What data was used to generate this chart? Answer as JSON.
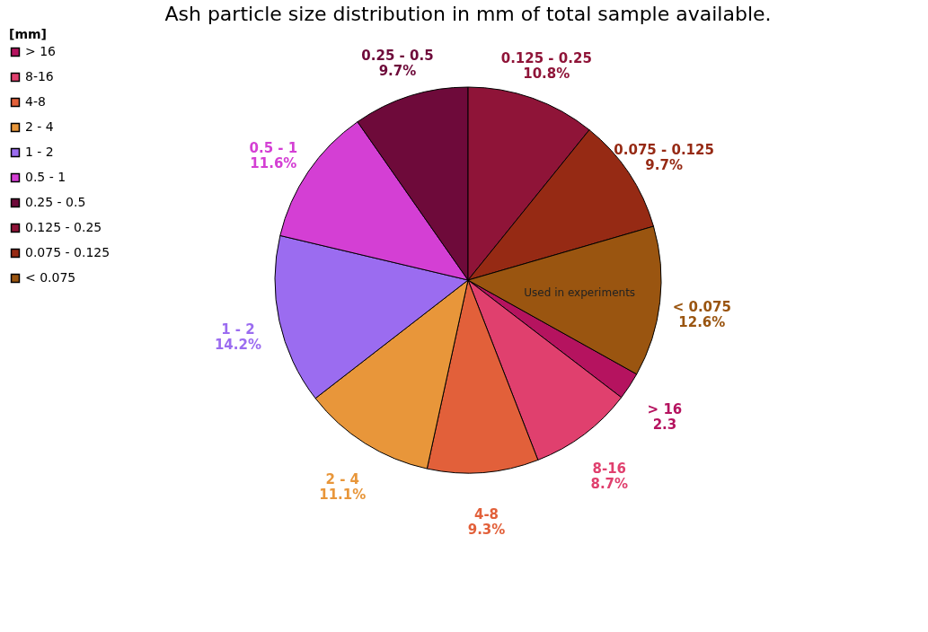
{
  "chart_data": {
    "type": "pie",
    "title": "Ash particle size distribution in mm of total sample available.",
    "legend_title": "[mm]",
    "legend": "left",
    "categories": [
      "> 16",
      "8-16",
      "4-8",
      "2 - 4",
      "1 - 2",
      "0.5 - 1",
      "0.25 - 0.5",
      "0.125 - 0.25",
      "0.075 - 0.125",
      "<  0.075"
    ],
    "values": [
      2.3,
      8.7,
      9.3,
      11.1,
      14.2,
      11.6,
      9.7,
      10.8,
      9.7,
      12.6
    ],
    "value_labels": [
      "2.3",
      "8.7%",
      "9.3%",
      "11.1%",
      "14.2%",
      "11.6%",
      "9.7%",
      "10.8%",
      "9.7%",
      "12.6%"
    ],
    "colors": [
      "#b5135f",
      "#e0406e",
      "#e2603a",
      "#e8963a",
      "#9b6cf0",
      "#d43fd4",
      "#6e0a3a",
      "#8f1438",
      "#962a14",
      "#9a5510"
    ],
    "annotations": [
      {
        "text": "Used in experiments",
        "x": "<  0.075"
      }
    ]
  }
}
